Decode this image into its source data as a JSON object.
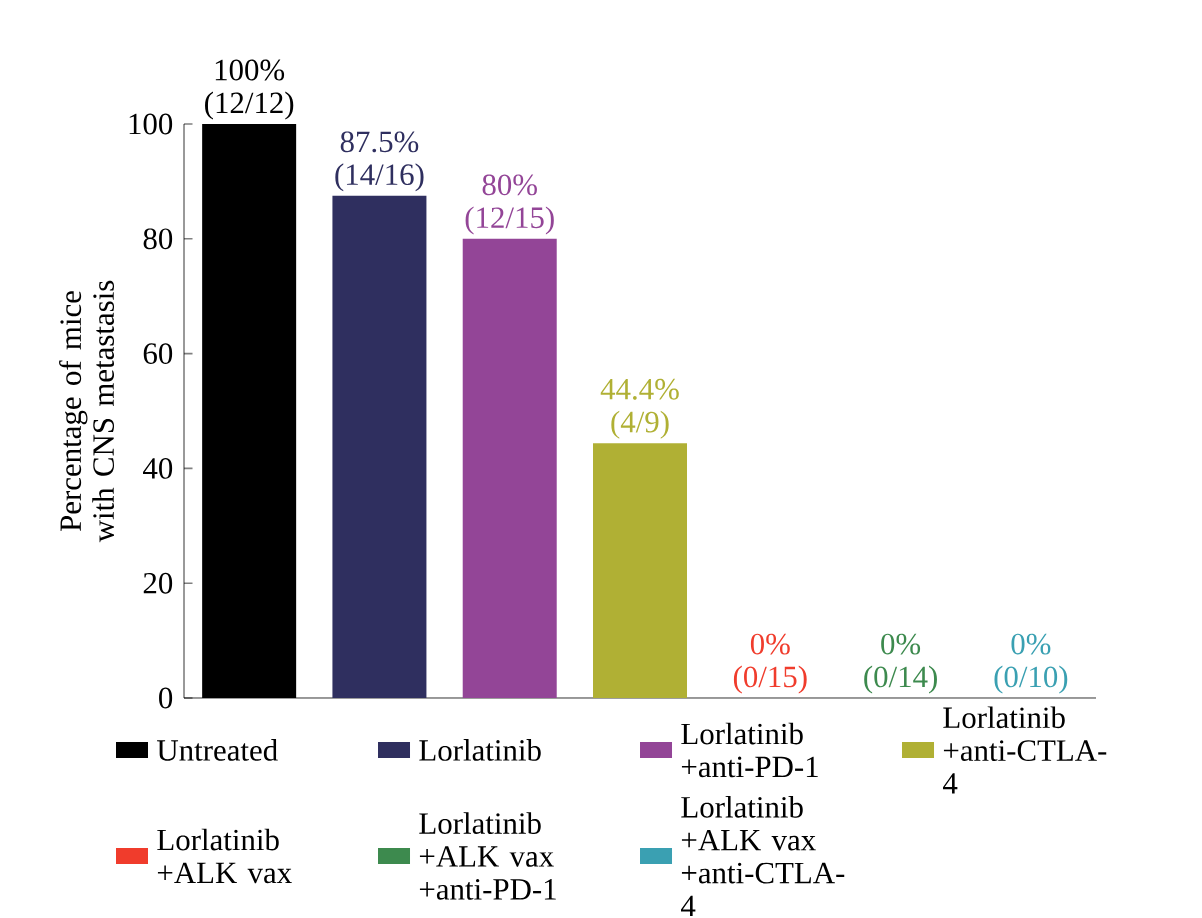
{
  "chart_data": {
    "type": "bar",
    "ylabel": "Percentage of mice with CNS metastasis",
    "categories": [
      null,
      null,
      null,
      null,
      null,
      null,
      null
    ],
    "ylim": [
      0,
      100
    ],
    "yticks": [
      0,
      20,
      40,
      60,
      80,
      100
    ],
    "legend": "bottom",
    "series": [
      {
        "name": "Untreated",
        "color": "#000000",
        "values": [
          100,
          null,
          null,
          null,
          null,
          null,
          null
        ],
        "value_labels": [
          "100% (12/12)",
          null,
          null,
          null,
          null,
          null,
          null
        ]
      },
      {
        "name": "Lorlatinib",
        "color": "#2f2f5f",
        "values": [
          null,
          87.5,
          null,
          null,
          null,
          null,
          null
        ],
        "value_labels": [
          null,
          "87.5% (14/16)",
          null,
          null,
          null,
          null,
          null
        ]
      },
      {
        "name": "Lorlatinib +anti-PD-1",
        "color": "#934597",
        "values": [
          null,
          null,
          80,
          null,
          null,
          null,
          null
        ],
        "value_labels": [
          null,
          null,
          "80% (12/15)",
          null,
          null,
          null,
          null
        ]
      },
      {
        "name": "Lorlatinib +anti-CTLA-4",
        "color": "#b0b034",
        "values": [
          null,
          null,
          null,
          44.4,
          null,
          null,
          null
        ],
        "value_labels": [
          null,
          null,
          null,
          "44.4% (4/9)",
          null,
          null,
          null
        ]
      },
      {
        "name": "Lorlatinib +ALK vax",
        "color": "#f03c2c",
        "values": [
          null,
          null,
          null,
          null,
          0,
          null,
          null
        ],
        "value_labels": [
          null,
          null,
          null,
          null,
          "0% (0/15)",
          null,
          null
        ]
      },
      {
        "name": "Lorlatinib +ALK vax +anti-PD-1",
        "color": "#3d8a4e",
        "values": [
          null,
          null,
          null,
          null,
          null,
          0,
          null
        ],
        "value_labels": [
          null,
          null,
          null,
          null,
          null,
          "0% (0/14)",
          null
        ]
      },
      {
        "name": "Lorlatinib +ALK vax +anti-CTLA-4",
        "color": "#3aa0b2",
        "values": [
          null,
          null,
          null,
          null,
          null,
          null,
          0
        ],
        "value_labels": [
          null,
          null,
          null,
          null,
          null,
          null,
          "0% (0/10)"
        ]
      }
    ]
  }
}
